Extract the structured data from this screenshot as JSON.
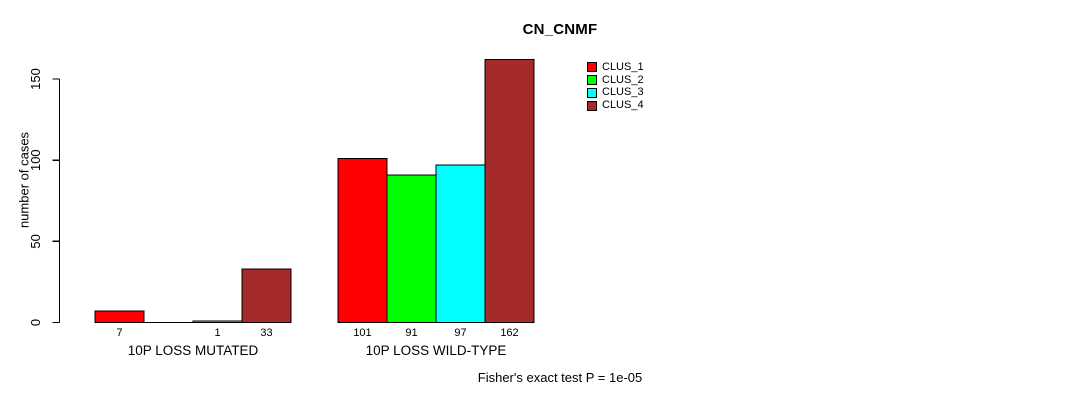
{
  "chart_data": {
    "type": "bar",
    "title": "CN_CNMF",
    "ylabel": "number of cases",
    "xlabel": "",
    "groups": [
      "10P LOSS MUTATED",
      "10P LOSS WILD-TYPE"
    ],
    "series": [
      {
        "name": "CLUS_1",
        "color": "#FF0000",
        "values": [
          7,
          101
        ]
      },
      {
        "name": "CLUS_2",
        "color": "#00FF00",
        "values": [
          0,
          91
        ]
      },
      {
        "name": "CLUS_3",
        "color": "#00FFFF",
        "values": [
          1,
          97
        ]
      },
      {
        "name": "CLUS_4",
        "color": "#A52A2A",
        "values": [
          33,
          162
        ]
      }
    ],
    "value_labels": [
      [
        "7",
        "",
        "1",
        "33"
      ],
      [
        "101",
        "91",
        "97",
        "162"
      ]
    ],
    "yticks": [
      0,
      50,
      100,
      150
    ],
    "ylim": [
      0,
      165
    ],
    "grid": false,
    "legend_position": "top-right",
    "annotation": "Fisher's exact test P = 1e-05",
    "bar_border_color": "#000000",
    "text_color": "#000000",
    "background": "#FFFFFF"
  }
}
